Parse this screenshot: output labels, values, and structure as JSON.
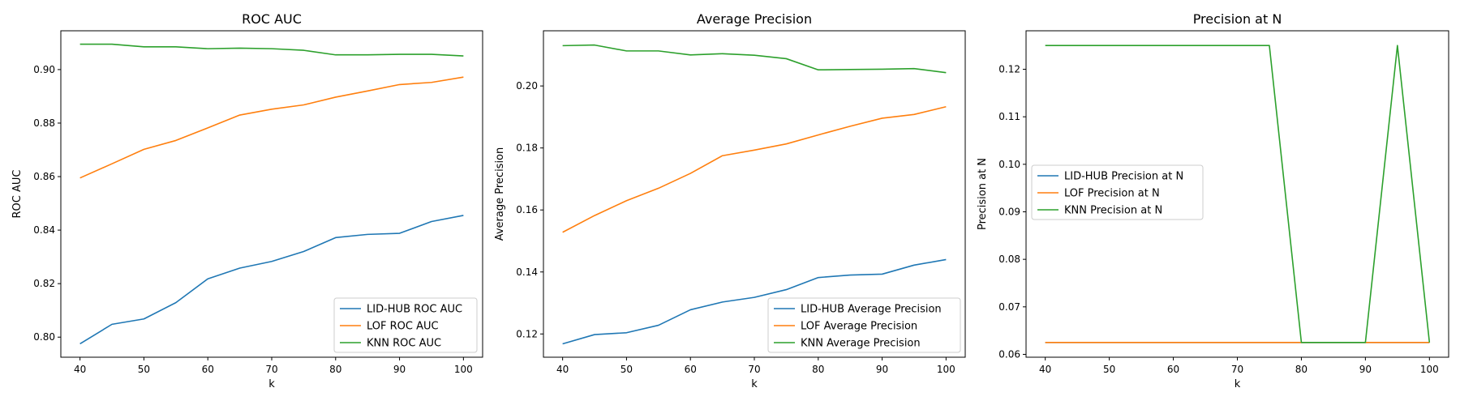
{
  "chart_data": [
    {
      "type": "line",
      "title": "ROC AUC",
      "xlabel": "k",
      "ylabel": "ROC AUC",
      "xlim": [
        37,
        103
      ],
      "ylim": [
        0.7925,
        0.9145
      ],
      "xticks": [
        40,
        50,
        60,
        70,
        80,
        90,
        100
      ],
      "xtick_labels": [
        "40",
        "50",
        "60",
        "70",
        "80",
        "90",
        "100"
      ],
      "yticks": [
        0.8,
        0.82,
        0.84,
        0.86,
        0.88,
        0.9
      ],
      "ytick_labels": [
        "0.80",
        "0.82",
        "0.84",
        "0.86",
        "0.88",
        "0.90"
      ],
      "legend_position": "lower-right",
      "x": [
        40,
        45,
        50,
        55,
        60,
        65,
        70,
        75,
        80,
        85,
        90,
        95,
        100
      ],
      "series": [
        {
          "name": "LID-HUB ROC AUC",
          "color": "#1f77b4",
          "values": [
            0.7975,
            0.8048,
            0.8068,
            0.8129,
            0.8218,
            0.8258,
            0.8283,
            0.832,
            0.8372,
            0.8384,
            0.8388,
            0.8432,
            0.8455
          ]
        },
        {
          "name": "LOF ROC AUC",
          "color": "#ff7f0e",
          "values": [
            0.8595,
            0.8648,
            0.8702,
            0.8735,
            0.8782,
            0.883,
            0.8852,
            0.8868,
            0.8897,
            0.892,
            0.8944,
            0.8952,
            0.8972
          ]
        },
        {
          "name": "KNN ROC AUC",
          "color": "#2ca02c",
          "values": [
            0.9095,
            0.9095,
            0.9085,
            0.9085,
            0.9078,
            0.908,
            0.9078,
            0.9072,
            0.9055,
            0.9055,
            0.9057,
            0.9057,
            0.9051
          ]
        }
      ]
    },
    {
      "type": "line",
      "title": "Average Precision",
      "xlabel": "k",
      "ylabel": "Average Precision",
      "xlim": [
        37,
        103
      ],
      "ylim": [
        0.1125,
        0.2178
      ],
      "xticks": [
        40,
        50,
        60,
        70,
        80,
        90,
        100
      ],
      "xtick_labels": [
        "40",
        "50",
        "60",
        "70",
        "80",
        "90",
        "100"
      ],
      "yticks": [
        0.12,
        0.14,
        0.16,
        0.18,
        0.2
      ],
      "ytick_labels": [
        "0.12",
        "0.14",
        "0.16",
        "0.18",
        "0.20"
      ],
      "legend_position": "lower-right",
      "x": [
        40,
        45,
        50,
        55,
        60,
        65,
        70,
        75,
        80,
        85,
        90,
        95,
        100
      ],
      "series": [
        {
          "name": "LID-HUB Average Precision",
          "color": "#1f77b4",
          "values": [
            0.1168,
            0.1198,
            0.1204,
            0.1228,
            0.1278,
            0.1303,
            0.1318,
            0.1343,
            0.1382,
            0.139,
            0.1393,
            0.1422,
            0.144
          ]
        },
        {
          "name": "LOF Average Precision",
          "color": "#ff7f0e",
          "values": [
            0.1528,
            0.1582,
            0.163,
            0.167,
            0.1718,
            0.1775,
            0.1793,
            0.1813,
            0.1842,
            0.187,
            0.1896,
            0.1908,
            0.1933
          ]
        },
        {
          "name": "KNN Average Precision",
          "color": "#2ca02c",
          "values": [
            0.213,
            0.2132,
            0.2113,
            0.2113,
            0.21,
            0.2104,
            0.2099,
            0.2088,
            0.2052,
            0.2053,
            0.2054,
            0.2056,
            0.2043
          ]
        }
      ]
    },
    {
      "type": "line",
      "title": "Precision at N",
      "xlabel": "k",
      "ylabel": "Precision at N",
      "xlim": [
        37,
        103
      ],
      "ylim": [
        0.0594,
        0.1281
      ],
      "xticks": [
        40,
        50,
        60,
        70,
        80,
        90,
        100
      ],
      "xtick_labels": [
        "40",
        "50",
        "60",
        "70",
        "80",
        "90",
        "100"
      ],
      "yticks": [
        0.06,
        0.07,
        0.08,
        0.09,
        0.1,
        0.11,
        0.12
      ],
      "ytick_labels": [
        "0.06",
        "0.07",
        "0.08",
        "0.09",
        "0.10",
        "0.11",
        "0.12"
      ],
      "legend_position": "center-left",
      "x": [
        40,
        45,
        50,
        55,
        60,
        65,
        70,
        75,
        80,
        85,
        90,
        95,
        100
      ],
      "series": [
        {
          "name": "LID-HUB Precision at N",
          "color": "#1f77b4",
          "values": [
            0.0625,
            0.0625,
            0.0625,
            0.0625,
            0.0625,
            0.0625,
            0.0625,
            0.0625,
            0.0625,
            0.0625,
            0.0625,
            0.0625,
            0.0625
          ]
        },
        {
          "name": "LOF Precision at N",
          "color": "#ff7f0e",
          "values": [
            0.0625,
            0.0625,
            0.0625,
            0.0625,
            0.0625,
            0.0625,
            0.0625,
            0.0625,
            0.0625,
            0.0625,
            0.0625,
            0.0625,
            0.0625
          ]
        },
        {
          "name": "KNN Precision at N",
          "color": "#2ca02c",
          "values": [
            0.125,
            0.125,
            0.125,
            0.125,
            0.125,
            0.125,
            0.125,
            0.125,
            0.0625,
            0.0625,
            0.0625,
            0.125,
            0.0625
          ]
        }
      ]
    }
  ]
}
